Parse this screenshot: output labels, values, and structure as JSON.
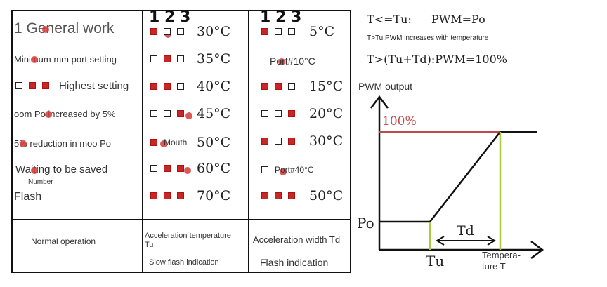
{
  "table": {
    "header_digits": [
      "1",
      "2",
      "3"
    ],
    "col1": {
      "title": "1 General work",
      "rows": [
        "Minimum mm port setting",
        "Highest setting",
        "oom Po increased by 5%",
        "5% reduction in moo Po",
        "Waiting to be saved",
        "Flash"
      ],
      "number_label": "Number",
      "bottom": "Normal operation"
    },
    "col2": {
      "rows": [
        {
          "pattern": [
            1,
            0,
            0
          ],
          "temp": "30°C"
        },
        {
          "pattern": [
            0,
            1,
            0
          ],
          "temp": "35°C"
        },
        {
          "pattern": [
            1,
            1,
            0
          ],
          "temp": "40°C"
        },
        {
          "pattern": [
            0,
            0,
            1
          ],
          "temp": "45°C"
        },
        {
          "pattern": [
            1
          ],
          "label": "Mouth",
          "temp": "50°C"
        },
        {
          "pattern": [
            0,
            1,
            1
          ],
          "temp": "60°C"
        },
        {
          "pattern": [
            1,
            1,
            1
          ],
          "temp": "70°C"
        }
      ],
      "bottom_line1": "Acceleration temperature",
      "bottom_line2": "Tu",
      "bottom_line3": "Slow flash indication"
    },
    "col3": {
      "rows": [
        {
          "pattern": [
            1,
            0,
            0
          ],
          "temp": "5°C"
        },
        {
          "label": "Port#10°C"
        },
        {
          "pattern": [
            1,
            1,
            0
          ],
          "temp": "15°C"
        },
        {
          "pattern": [
            0,
            0,
            1
          ],
          "temp": "20°C"
        },
        {
          "pattern": [
            1,
            0,
            1
          ],
          "temp": "30°C"
        },
        {
          "pattern": [
            0
          ],
          "label": "Port#40°C"
        },
        {
          "pattern": [
            1,
            1,
            1
          ],
          "temp": "50°C"
        }
      ],
      "bottom_line1": "Acceleration width Td",
      "bottom_line2": "Flash indication"
    }
  },
  "equations": {
    "line1_left": "T<=Tu:",
    "line1_right": "PWM=Po",
    "line2": "T>Tu:PWM increases with temperature",
    "line3": "T>(Tu+Td):PWM=100%"
  },
  "graph": {
    "y_axis_label": "PWM output",
    "label_100": "100%",
    "label_po": "Po",
    "label_td": "Td",
    "label_tu": "Tu",
    "x_axis_label_1": "Tempera-",
    "x_axis_label_2": "ture T",
    "colors": {
      "line_100": "#c0484a",
      "guide": "#a8cc3c",
      "axis": "#111111",
      "text_100": "#c0484a"
    }
  }
}
